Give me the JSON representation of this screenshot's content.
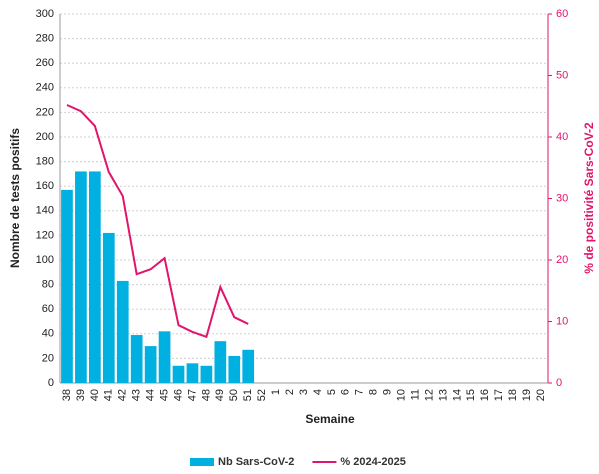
{
  "chart_data": {
    "type": "bar-line",
    "x_label": "Semaine",
    "y_label": "Nombre de tests positifs",
    "y2_label": "% de positivité Sars-CoV-2",
    "categories": [
      "38",
      "39",
      "40",
      "41",
      "42",
      "43",
      "44",
      "45",
      "46",
      "47",
      "48",
      "49",
      "50",
      "51",
      "52",
      "1",
      "2",
      "3",
      "4",
      "5",
      "6",
      "7",
      "8",
      "9",
      "10",
      "11",
      "12",
      "13",
      "14",
      "15",
      "16",
      "17",
      "18",
      "19",
      "20"
    ],
    "series": [
      {
        "name": "Nb Sars-CoV-2",
        "color": "#00b0e0",
        "kind": "bar",
        "values": [
          157,
          172,
          172,
          122,
          83,
          39,
          30,
          42,
          14,
          16,
          14,
          34,
          22,
          27,
          null,
          null,
          null,
          null,
          null,
          null,
          null,
          null,
          null,
          null,
          null,
          null,
          null,
          null,
          null,
          null,
          null,
          null,
          null,
          null,
          null
        ]
      },
      {
        "name": "% 2024-2025",
        "color": "#e0156b",
        "kind": "line",
        "axis": "y2",
        "values": [
          45.2,
          44.2,
          41.8,
          34.3,
          30.4,
          17.7,
          18.5,
          20.3,
          9.4,
          8.3,
          7.5,
          15.6,
          10.7,
          9.6,
          null,
          null,
          null,
          null,
          null,
          null,
          null,
          null,
          null,
          null,
          null,
          null,
          null,
          null,
          null,
          null,
          null,
          null,
          null,
          null,
          null
        ]
      }
    ],
    "ylim": [
      0,
      300
    ],
    "yticks": [
      0,
      20,
      40,
      60,
      80,
      100,
      120,
      140,
      160,
      180,
      200,
      220,
      240,
      260,
      280,
      300
    ],
    "y2lim": [
      0,
      60
    ],
    "y2ticks": [
      0,
      10,
      20,
      30,
      40,
      50,
      60
    ],
    "grid": true,
    "legend": "bottom"
  }
}
